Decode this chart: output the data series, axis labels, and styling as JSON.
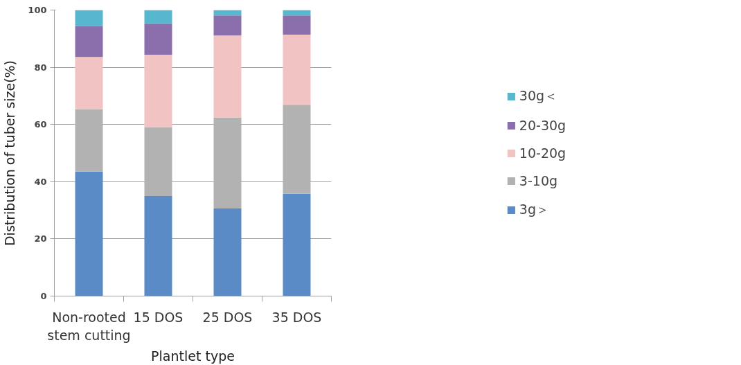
{
  "chart_data": {
    "type": "bar",
    "stacked": true,
    "xlabel": "Plantlet type",
    "ylabel": "Distribution of tuber size(%)",
    "categories": [
      "Non-rooted\nstem cutting",
      "15 DOS",
      "25 DOS",
      "35 DOS"
    ],
    "series": [
      {
        "name": "3g＞",
        "color": "#5b8bc6",
        "values": [
          43.5,
          35.0,
          30.6,
          35.8
        ]
      },
      {
        "name": "3-10g",
        "color": "#b2b2b2",
        "values": [
          21.8,
          24.1,
          31.8,
          31.1
        ]
      },
      {
        "name": "10-20g",
        "color": "#f1c3c2",
        "values": [
          18.3,
          25.3,
          28.7,
          24.5
        ]
      },
      {
        "name": "20-30g",
        "color": "#8b6fad",
        "values": [
          10.8,
          10.8,
          7.0,
          6.7
        ]
      },
      {
        "name": "30g＜",
        "color": "#56b7cf",
        "values": [
          5.6,
          4.8,
          1.9,
          1.9
        ]
      }
    ],
    "ylim": [
      0,
      100
    ],
    "yticks": [
      0,
      20,
      40,
      60,
      80,
      100
    ],
    "grid": "y",
    "legend": "right"
  }
}
